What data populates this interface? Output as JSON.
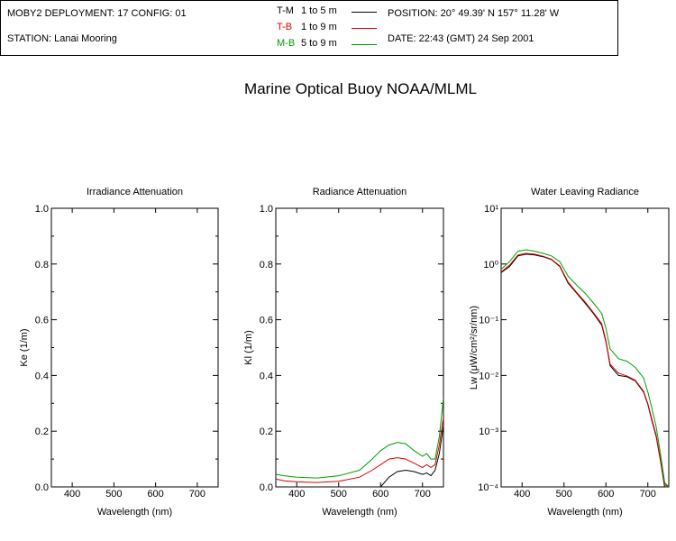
{
  "title": "Marine Optical Buoy NOAA/MLML",
  "info": {
    "deployment": "MOBY2 DEPLOYMENT: 17 CONFIG: 01",
    "station": "STATION: Lanai Mooring",
    "position": "POSITION: 20° 49.39' N   157° 11.28' W",
    "date": "DATE: 22:43 (GMT) 24 Sep 2001"
  },
  "legend": [
    {
      "code": "T-M",
      "range": "1 to 5  m",
      "color": "#000000"
    },
    {
      "code": "T-B",
      "range": "1 to 9  m",
      "color": "#dd0000"
    },
    {
      "code": "M-B",
      "range": "5 to 9  m",
      "color": "#00a000"
    }
  ],
  "chart_data": [
    {
      "type": "line",
      "title": "Irradiance Attenuation",
      "xlabel": "Wavelength (nm)",
      "ylabel": "Ke  (1/m)",
      "xlim": [
        350,
        750
      ],
      "ylim": [
        0,
        1
      ],
      "xticks": [
        "400",
        "500",
        "600",
        "700"
      ],
      "yticks": [
        "0.0",
        "0.2",
        "0.4",
        "0.6",
        "0.8",
        "1.0"
      ],
      "series": []
    },
    {
      "type": "line",
      "title": "Radiance Attenuation",
      "xlabel": "Wavelength (nm)",
      "ylabel": "Kl  (1/m)",
      "xlim": [
        350,
        750
      ],
      "ylim": [
        0,
        1
      ],
      "xticks": [
        "400",
        "500",
        "600",
        "700"
      ],
      "yticks": [
        "0.0",
        "0.2",
        "0.4",
        "0.6",
        "0.8",
        "1.0"
      ],
      "series": [
        {
          "name": "T-M",
          "color": "#000000",
          "x": [
            350,
            370,
            400,
            450,
            500,
            550,
            580,
            600,
            620,
            640,
            660,
            680,
            700,
            710,
            720,
            730,
            740,
            750
          ],
          "y": [
            0.0,
            0.0,
            0.0,
            0.0,
            0.0,
            0.0,
            0.0,
            0.0,
            0.035,
            0.055,
            0.06,
            0.055,
            0.045,
            0.05,
            0.04,
            0.06,
            0.12,
            0.22
          ]
        },
        {
          "name": "T-B",
          "color": "#dd0000",
          "x": [
            350,
            370,
            400,
            450,
            500,
            550,
            580,
            600,
            620,
            640,
            660,
            680,
            700,
            710,
            720,
            730,
            740,
            750
          ],
          "y": [
            0.028,
            0.022,
            0.018,
            0.016,
            0.02,
            0.035,
            0.06,
            0.08,
            0.1,
            0.105,
            0.1,
            0.085,
            0.07,
            0.08,
            0.07,
            0.08,
            0.15,
            0.25
          ]
        },
        {
          "name": "M-B",
          "color": "#00a000",
          "x": [
            350,
            370,
            400,
            450,
            500,
            550,
            580,
            600,
            620,
            640,
            660,
            680,
            700,
            710,
            720,
            730,
            740,
            750
          ],
          "y": [
            0.045,
            0.04,
            0.035,
            0.032,
            0.04,
            0.06,
            0.1,
            0.13,
            0.15,
            0.16,
            0.155,
            0.13,
            0.11,
            0.12,
            0.1,
            0.1,
            0.18,
            0.32
          ]
        }
      ]
    },
    {
      "type": "line",
      "title": "Water Leaving Radiance",
      "xlabel": "Wavelength (nm)",
      "ylabel": "Lw  (μW/cm²/sr/nm)",
      "xlim": [
        350,
        750
      ],
      "ylim": [
        0.0001,
        10
      ],
      "yscale": "log",
      "xticks": [
        "400",
        "500",
        "600",
        "700"
      ],
      "yticks": [
        "10⁻⁴",
        "10⁻³",
        "10⁻²",
        "10⁻¹",
        "10⁰",
        "10¹"
      ],
      "series": [
        {
          "name": "T-M",
          "color": "#000000",
          "x": [
            350,
            370,
            390,
            410,
            430,
            450,
            470,
            490,
            510,
            530,
            550,
            570,
            590,
            600,
            610,
            630,
            650,
            670,
            690,
            700,
            710,
            720,
            730,
            740,
            750
          ],
          "y": [
            0.7,
            0.9,
            1.4,
            1.5,
            1.45,
            1.35,
            1.2,
            0.9,
            0.45,
            0.3,
            0.2,
            0.13,
            0.08,
            0.04,
            0.015,
            0.01,
            0.0095,
            0.008,
            0.005,
            0.003,
            0.0015,
            0.0008,
            0.0003,
            0.0001,
            0.0001
          ]
        },
        {
          "name": "T-B",
          "color": "#dd0000",
          "x": [
            350,
            370,
            390,
            410,
            430,
            450,
            470,
            490,
            510,
            530,
            550,
            570,
            590,
            600,
            610,
            630,
            650,
            670,
            690,
            700,
            710,
            720,
            730,
            740,
            750
          ],
          "y": [
            0.72,
            0.95,
            1.45,
            1.55,
            1.5,
            1.38,
            1.22,
            0.92,
            0.47,
            0.31,
            0.21,
            0.135,
            0.085,
            0.042,
            0.016,
            0.011,
            0.0098,
            0.0082,
            0.0052,
            0.0031,
            0.0016,
            0.00085,
            0.00032,
            0.00011,
            0.0001
          ]
        },
        {
          "name": "M-B",
          "color": "#00a000",
          "x": [
            350,
            370,
            390,
            410,
            430,
            450,
            470,
            490,
            510,
            530,
            550,
            570,
            590,
            600,
            610,
            630,
            650,
            670,
            690,
            700,
            710,
            720,
            730,
            740,
            750
          ],
          "y": [
            0.8,
            1.1,
            1.7,
            1.8,
            1.7,
            1.55,
            1.4,
            1.1,
            0.6,
            0.42,
            0.3,
            0.2,
            0.13,
            0.07,
            0.03,
            0.02,
            0.018,
            0.014,
            0.009,
            0.005,
            0.0025,
            0.0012,
            0.0004,
            0.00012,
            0.0001
          ]
        }
      ]
    }
  ]
}
